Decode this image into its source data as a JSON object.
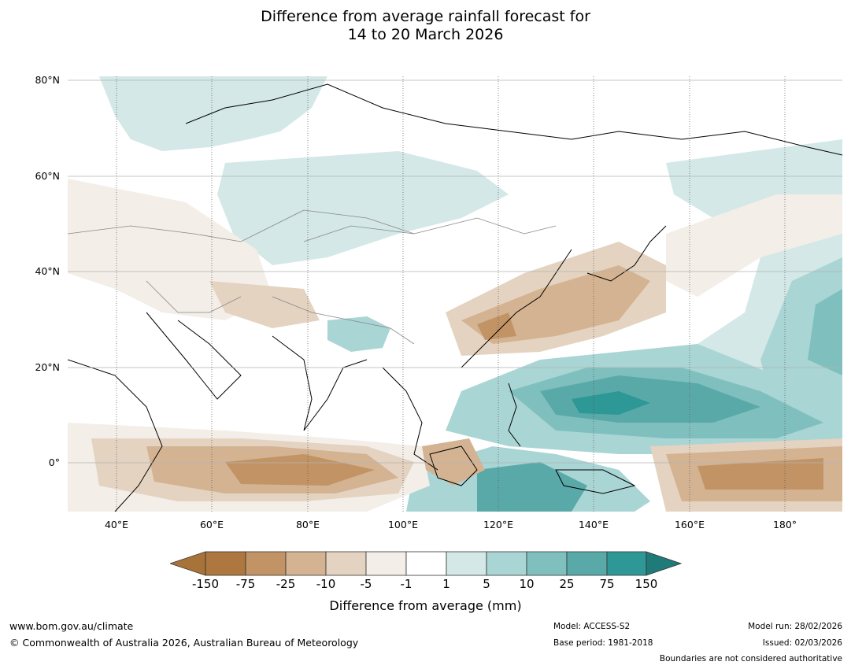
{
  "title": {
    "line1": "Difference from average rainfall forecast for",
    "line2": "14 to 20 March 2026"
  },
  "map": {
    "lat_labels": [
      "80°N",
      "60°N",
      "40°N",
      "20°N",
      "0°"
    ],
    "lon_labels": [
      "40°E",
      "60°E",
      "80°E",
      "100°E",
      "120°E",
      "140°E",
      "160°E",
      "180°"
    ]
  },
  "legend": {
    "ticks": [
      "-150",
      "-75",
      "-25",
      "-10",
      "-5",
      "-1",
      "1",
      "5",
      "10",
      "25",
      "75",
      "150"
    ],
    "colors": [
      "#a87338",
      "#ad773f",
      "#c29465",
      "#d4b392",
      "#e4d3c0",
      "#f3eee8",
      "#ffffff",
      "#d3e8e7",
      "#a9d5d4",
      "#7fc0bf",
      "#5aa9a9",
      "#2e9896",
      "#1f7b79"
    ],
    "label": "Difference from average (mm)"
  },
  "footer": {
    "url": "www.bom.gov.au/climate",
    "copyright": "© Commonwealth of Australia 2026, Australian Bureau of Meteorology",
    "model": "Model: ACCESS-S2",
    "base_period": "Base period: 1981-2018",
    "model_run": "Model run: 28/02/2026",
    "issued": "Issued: 02/03/2026",
    "disclaimer": "Boundaries are not considered authoritative"
  }
}
